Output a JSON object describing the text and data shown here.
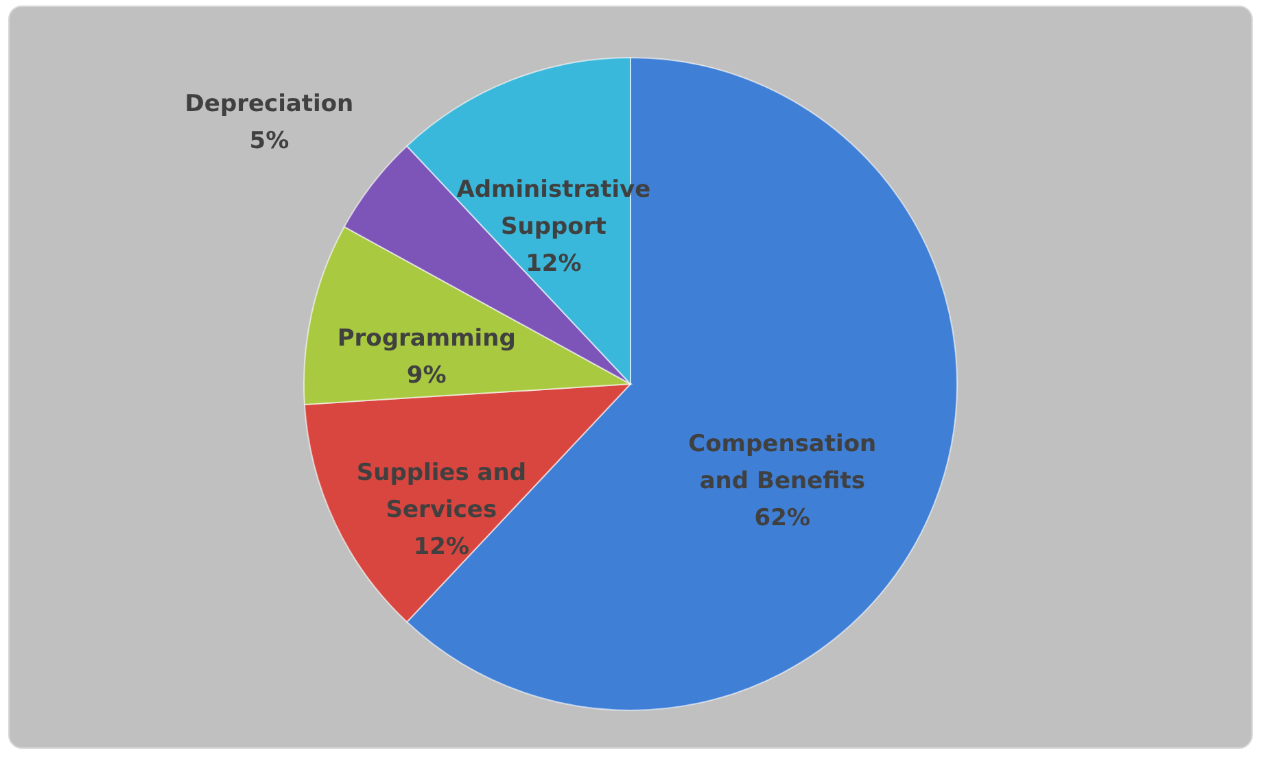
{
  "chart_data": {
    "type": "pie",
    "categories": [
      "Compensation and Benefits",
      "Supplies and Services",
      "Programming",
      "Depreciation",
      "Administrative Support"
    ],
    "values": [
      62,
      12,
      9,
      5,
      12
    ],
    "colors": [
      "#3f7fd6",
      "#d9463f",
      "#a9c940",
      "#7d55b8",
      "#3ab8db"
    ],
    "value_labels": [
      "62%",
      "12%",
      "9%",
      "5%",
      "12%"
    ]
  }
}
